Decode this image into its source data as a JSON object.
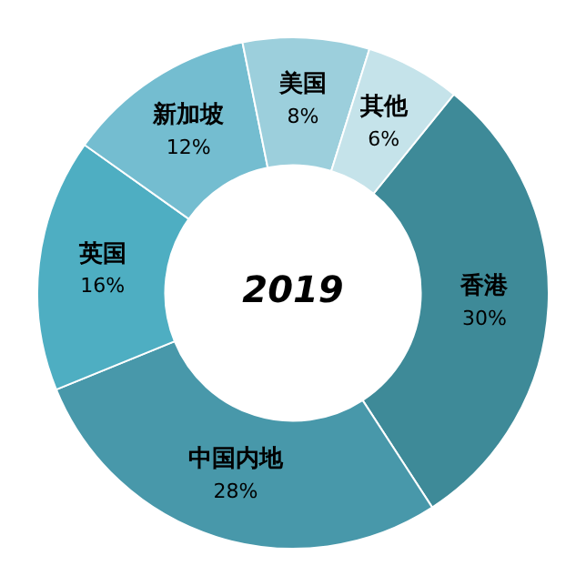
{
  "chart_data": {
    "type": "donut",
    "title": "2019",
    "categories": [
      "香港",
      "中国内地",
      "英国",
      "新加坡",
      "美国",
      "其他"
    ],
    "values": [
      30,
      28,
      16,
      12,
      8,
      6
    ],
    "value_labels": [
      "30%",
      "28%",
      "16%",
      "12%",
      "8%",
      "6%"
    ],
    "colors": [
      "#3e8a98",
      "#4898aa",
      "#4eaec2",
      "#74bdd0",
      "#9ccfdc",
      "#c5e3ea"
    ],
    "legend": false
  }
}
